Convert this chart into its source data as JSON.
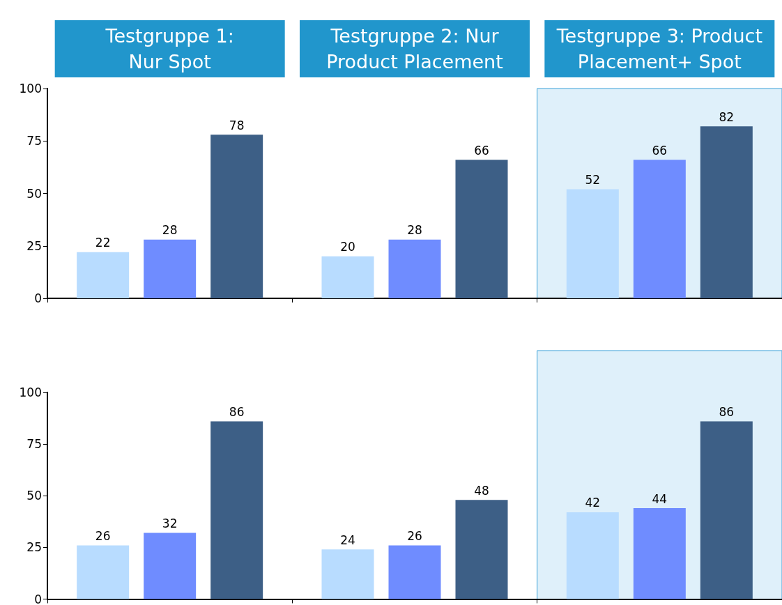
{
  "chart_data": [
    {
      "type": "bar",
      "categories": [
        "Testgruppe 1:\nNur Spot",
        "Testgruppe 2: Nur\nProduct Placement",
        "Testgruppe 3: Product\nPlacement+ Spot"
      ],
      "series": [
        {
          "color": "#b8dcff",
          "values": [
            22,
            20,
            52
          ]
        },
        {
          "color": "#6f8cff",
          "values": [
            28,
            28,
            66
          ]
        },
        {
          "color": "#3d5f86",
          "values": [
            78,
            66,
            82
          ]
        }
      ],
      "ylim": [
        0,
        100
      ],
      "yticks": [
        0,
        25,
        50,
        75,
        100
      ],
      "grid": false,
      "data_labels": true,
      "bands": [
        {
          "axis": "x",
          "from": "Testgruppe 3: Product\nPlacement+ Spot",
          "to": "Testgruppe 3: Product\nPlacement+ Spot",
          "color": "#dff0fa"
        }
      ]
    },
    {
      "type": "bar",
      "categories": [
        "Testgruppe 1:\nNur Spot",
        "Testgruppe 2: Nur\nProduct Placement",
        "Testgruppe 3: Product\nPlacement+ Spot"
      ],
      "series": [
        {
          "color": "#b8dcff",
          "values": [
            26,
            24,
            42
          ]
        },
        {
          "color": "#6f8cff",
          "values": [
            32,
            26,
            44
          ]
        },
        {
          "color": "#3d5f86",
          "values": [
            86,
            48,
            86
          ]
        }
      ],
      "ylim": [
        0,
        100
      ],
      "yticks": [
        0,
        25,
        50,
        75,
        100
      ],
      "tick_labels": "y",
      "grid": false,
      "data_labels": true,
      "bands": [
        {
          "axis": "x",
          "from": "Testgruppe 3: Product\nPlacement+ Spot",
          "to": "Testgruppe 3: Product\nPlacement+ Spot",
          "color": "#dff0fa"
        }
      ]
    }
  ]
}
